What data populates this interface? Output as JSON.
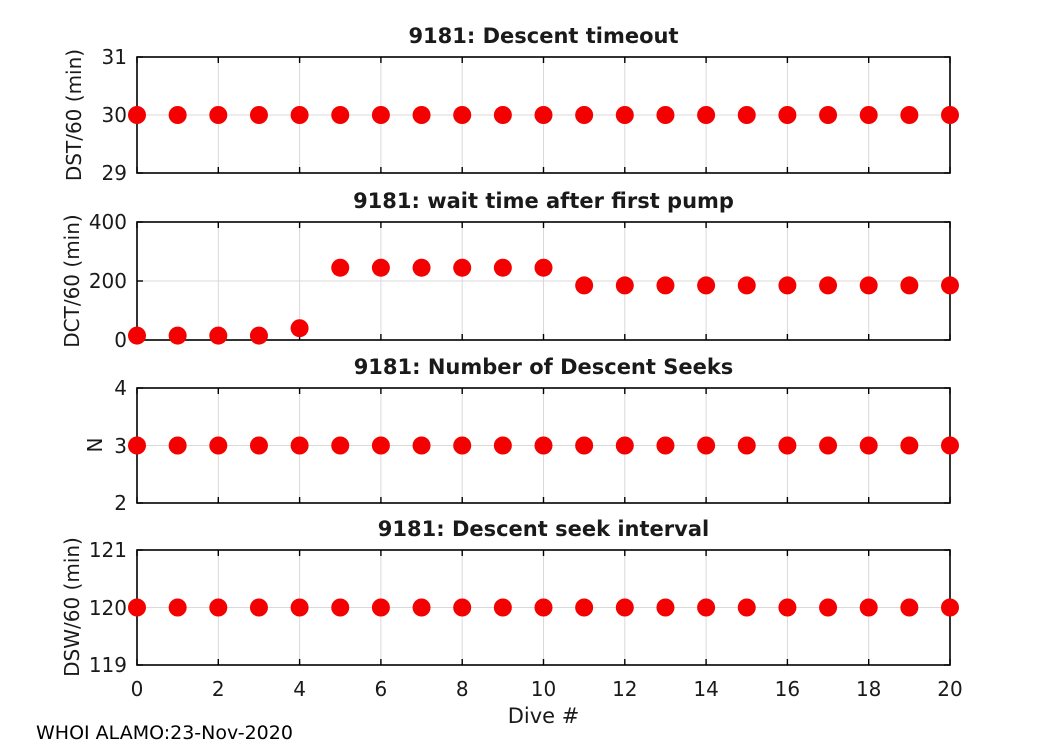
{
  "figure": {
    "footer_text": "WHOI ALAMO:23-Nov-2020",
    "xlabel": "Dive #",
    "marker_color": "#f40000",
    "grid_color": "#d9d9d9",
    "axis_color": "#000000",
    "background": "#ffffff"
  },
  "chart_data": [
    {
      "type": "scatter",
      "title": "9181: Descent timeout",
      "ylabel": "DST/60 (min)",
      "xlabel": "",
      "xlim": [
        0,
        20
      ],
      "ylim": [
        29,
        31
      ],
      "xticks": [
        0,
        2,
        4,
        6,
        8,
        10,
        12,
        14,
        16,
        18,
        20
      ],
      "yticks": [
        29,
        30,
        31
      ],
      "grid": true,
      "x": [
        0,
        1,
        2,
        3,
        4,
        5,
        6,
        7,
        8,
        9,
        10,
        11,
        12,
        13,
        14,
        15,
        16,
        17,
        18,
        19,
        20
      ],
      "y": [
        30,
        30,
        30,
        30,
        30,
        30,
        30,
        30,
        30,
        30,
        30,
        30,
        30,
        30,
        30,
        30,
        30,
        30,
        30,
        30,
        30
      ]
    },
    {
      "type": "scatter",
      "title": "9181: wait time after first pump",
      "ylabel": "DCT/60 (min)",
      "xlabel": "",
      "xlim": [
        0,
        20
      ],
      "ylim": [
        0,
        400
      ],
      "xticks": [
        0,
        2,
        4,
        6,
        8,
        10,
        12,
        14,
        16,
        18,
        20
      ],
      "yticks": [
        0,
        200,
        400
      ],
      "grid": true,
      "x": [
        0,
        1,
        2,
        3,
        4,
        5,
        6,
        7,
        8,
        9,
        10,
        11,
        12,
        13,
        14,
        15,
        16,
        17,
        18,
        19,
        20
      ],
      "y": [
        15,
        15,
        15,
        15,
        40,
        245,
        245,
        245,
        245,
        245,
        245,
        185,
        185,
        185,
        185,
        185,
        185,
        185,
        185,
        185,
        185
      ]
    },
    {
      "type": "scatter",
      "title": "9181: Number of Descent Seeks",
      "ylabel": "N",
      "xlabel": "",
      "xlim": [
        0,
        20
      ],
      "ylim": [
        2,
        4
      ],
      "xticks": [
        0,
        2,
        4,
        6,
        8,
        10,
        12,
        14,
        16,
        18,
        20
      ],
      "yticks": [
        2,
        3,
        4
      ],
      "grid": true,
      "x": [
        0,
        1,
        2,
        3,
        4,
        5,
        6,
        7,
        8,
        9,
        10,
        11,
        12,
        13,
        14,
        15,
        16,
        17,
        18,
        19,
        20
      ],
      "y": [
        3,
        3,
        3,
        3,
        3,
        3,
        3,
        3,
        3,
        3,
        3,
        3,
        3,
        3,
        3,
        3,
        3,
        3,
        3,
        3,
        3
      ]
    },
    {
      "type": "scatter",
      "title": "9181: Descent seek interval",
      "ylabel": "DSW/60 (min)",
      "xlabel": "Dive #",
      "xlim": [
        0,
        20
      ],
      "ylim": [
        119,
        121
      ],
      "xticks": [
        0,
        2,
        4,
        6,
        8,
        10,
        12,
        14,
        16,
        18,
        20
      ],
      "yticks": [
        119,
        120,
        121
      ],
      "grid": true,
      "x": [
        0,
        1,
        2,
        3,
        4,
        5,
        6,
        7,
        8,
        9,
        10,
        11,
        12,
        13,
        14,
        15,
        16,
        17,
        18,
        19,
        20
      ],
      "y": [
        120,
        120,
        120,
        120,
        120,
        120,
        120,
        120,
        120,
        120,
        120,
        120,
        120,
        120,
        120,
        120,
        120,
        120,
        120,
        120,
        120
      ]
    }
  ]
}
